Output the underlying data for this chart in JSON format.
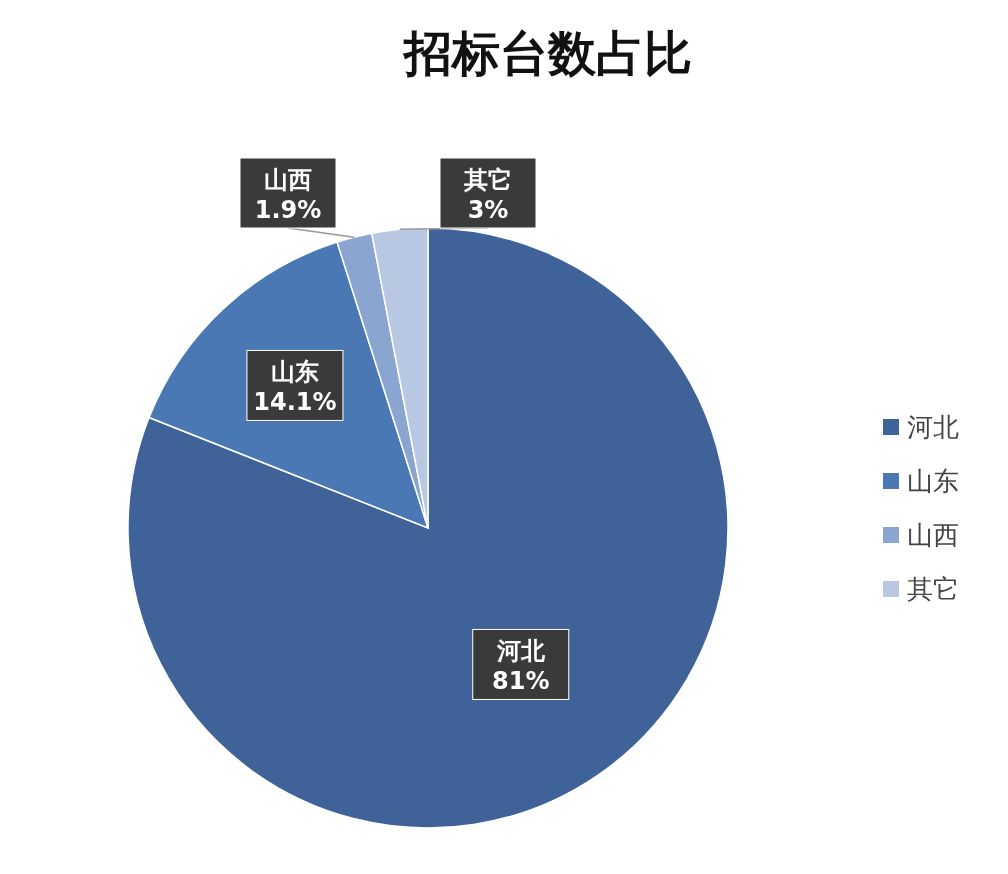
{
  "chart_data": {
    "type": "pie",
    "title": "招标台数占比",
    "categories": [
      "河北",
      "山东",
      "山西",
      "其它"
    ],
    "values": [
      81,
      14.1,
      1.9,
      3
    ],
    "value_labels": [
      "81%",
      "14.1%",
      "1.9%",
      "3%"
    ],
    "colors": [
      "#3f6299",
      "#4a78b5",
      "#8aa6d0",
      "#b8c8e3"
    ],
    "legend": "right"
  }
}
